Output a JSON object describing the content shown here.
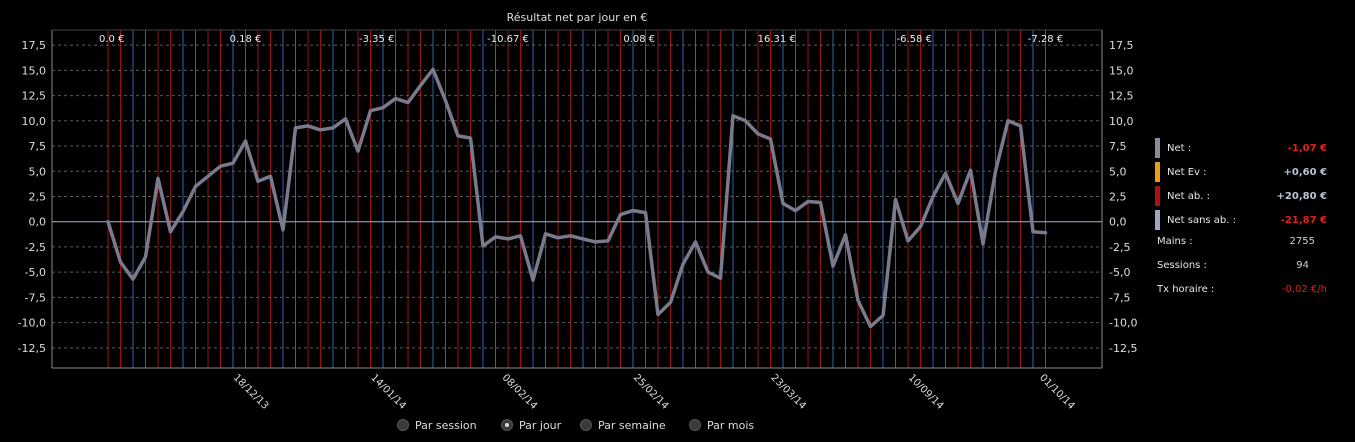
{
  "chart_data": {
    "type": "line",
    "title": "Résultat net par jour en €",
    "ylim": [
      -14.5,
      19
    ],
    "yticks": [
      17.5,
      15.0,
      12.5,
      10.0,
      7.5,
      5.0,
      2.5,
      0.0,
      -2.5,
      -5.0,
      -7.5,
      -10.0,
      -12.5
    ],
    "ytick_labels": [
      "17,5",
      "15,0",
      "12,5",
      "10,0",
      "7,5",
      "5,0",
      "2,5",
      "0,0",
      "-2,5",
      "-5,0",
      "-7,5",
      "-10,0",
      "-12,5"
    ],
    "x_labels": [
      {
        "i": 10,
        "label": "18/12/13"
      },
      {
        "i": 21,
        "label": "14/01/14"
      },
      {
        "i": 31.5,
        "label": "08/02/14"
      },
      {
        "i": 42,
        "label": "25/02/14"
      },
      {
        "i": 53,
        "label": "23/03/14"
      },
      {
        "i": 64,
        "label": "10/09/14"
      },
      {
        "i": 74.5,
        "label": "01/10/14"
      }
    ],
    "segment_totals": [
      {
        "i": 0.3,
        "label": "0.0 €"
      },
      {
        "i": 11,
        "label": "0.18 €"
      },
      {
        "i": 21.5,
        "label": "-3.35 €"
      },
      {
        "i": 32,
        "label": "-10.67 €"
      },
      {
        "i": 42.5,
        "label": "0.08 €"
      },
      {
        "i": 53.5,
        "label": "16.31 €"
      },
      {
        "i": 64.5,
        "label": "-6.58 €"
      },
      {
        "i": 75,
        "label": "-7.28 €"
      }
    ],
    "series": [
      {
        "color": "#7a7a8c",
        "values": [
          0,
          -4,
          -5.7,
          -3.5,
          4.3,
          -1,
          1,
          3.5,
          4.5,
          5.5,
          5.8,
          8,
          4,
          4.5,
          -0.8,
          9.3,
          9.5,
          9.1,
          9.3,
          10.2,
          7,
          11,
          11.3,
          12.2,
          11.8,
          13.5,
          15.1,
          12,
          8.5,
          8.3,
          -2.4,
          -1.5,
          -1.7,
          -1.4,
          -5.8,
          -1.2,
          -1.6,
          -1.4,
          -1.7,
          -2,
          -1.9,
          0.7,
          1.1,
          0.9,
          -9.2,
          -8,
          -4.2,
          -2,
          -5,
          -5.6,
          10.5,
          10,
          8.7,
          8.2,
          1.8,
          1.1,
          2,
          1.9,
          -4.4,
          -1.3,
          -7.8,
          -10.4,
          -9.3,
          2.2,
          -1.9,
          -0.5,
          2.5,
          4.8,
          1.8,
          5.1,
          -2.2,
          5,
          10,
          9.5,
          -1,
          -1.1
        ]
      }
    ],
    "grid": true
  },
  "legend": {
    "net_label": "Net :",
    "net_value": "-1,07 €",
    "net_color": "#888a9e",
    "net_value_color": "#e02020",
    "netev_label": "Net Ev :",
    "netev_value": "+0,60 €",
    "netev_color": "#e8a010",
    "netev_value_color": "#b8c4d8",
    "netab_label": "Net ab. :",
    "netab_value": "+20,80 €",
    "netab_color": "#b01010",
    "netab_value_color": "#b8c4d8",
    "netsans_label": "Net sans ab. :",
    "netsans_value": "-21,87 €",
    "netsans_color": "#9aa8c4",
    "netsans_value_color": "#e02020"
  },
  "stats": {
    "mains_label": "Mains :",
    "mains_value": "2755",
    "sessions_label": "Sessions :",
    "sessions_value": "94",
    "tx_label": "Tx horaire :",
    "tx_value": "-0,02 €/h",
    "tx_value_color": "#e02020"
  },
  "periods": {
    "session": "Par session",
    "jour": "Par jour",
    "semaine": "Par semaine",
    "mois": "Par mois",
    "selected": "jour"
  }
}
